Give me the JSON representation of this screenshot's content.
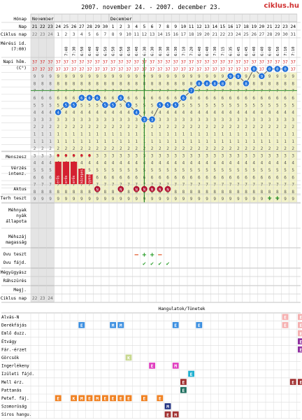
{
  "title": "2007. november 24. - 2007. december 23.",
  "logo": "ciklus.hu",
  "months": [
    "November",
    "December"
  ],
  "days": [
    21,
    22,
    23,
    24,
    25,
    26,
    27,
    28,
    29,
    30,
    1,
    2,
    3,
    4,
    5,
    6,
    7,
    8,
    9,
    10,
    11,
    12,
    13,
    14,
    15,
    16,
    17,
    18,
    19,
    20,
    21,
    22,
    23,
    24
  ],
  "cycle_days": [
    22,
    23,
    24,
    1,
    2,
    3,
    4,
    5,
    6,
    7,
    8,
    9,
    10,
    11,
    12,
    13,
    14,
    15,
    16,
    17,
    18,
    19,
    20,
    21,
    22,
    23,
    24,
    25,
    26,
    27,
    28,
    29,
    30,
    31
  ],
  "cycle_days_bottom": [
    22,
    23,
    24
  ],
  "measure_times": [
    "",
    "",
    "",
    "",
    "7:40",
    "7:30",
    "6:50",
    "6:40",
    "6:40",
    "6:50",
    "6:50",
    "6:50",
    "6:50",
    "6:40",
    "6:30",
    "6:30",
    "6:30",
    "6:30",
    "6:30",
    "7:10",
    "7:20",
    "6:40",
    "6:40",
    "7:30",
    "7:15",
    "6:35",
    "6:45",
    "6:45",
    "6:40",
    "6:40",
    "6:40",
    "6:50",
    "7:10",
    "7:10"
  ],
  "row_labels": {
    "month": "Hónap",
    "day": "Nap",
    "cycle": "Ciklus nap",
    "time1": "Mérési id.",
    "time2": "(7:00)",
    "temp1": "Napi hőm.",
    "temp2": "(C°)",
    "bleeding": "Menszesz",
    "intensity1": "Vérzés",
    "intensity2": "intenz.",
    "sex": "Aktus",
    "preg": "Terh teszt",
    "mucus1": "Méhnyak",
    "mucus2": "nyák",
    "mucus3": "állapota",
    "cervix1": "Méhszáj",
    "cervix2": "magasság",
    "ovu_test": "Ovu teszt",
    "ovu_fajd": "Ovu fájd.",
    "weight": "Mégyügyász",
    "cough": "Ráhszürés",
    "notes": "Megj.",
    "cycle_bottom": "Ciklus nap",
    "moods": "Hangulatok/Tünetek"
  },
  "temp_scale": [
    "37",
    "37",
    "9",
    "8",
    "7",
    "6",
    "5",
    "4",
    "3",
    "2",
    "1"
  ],
  "temp_scale_lower": [
    "1",
    "2",
    "3",
    "4",
    "5",
    "6",
    "7",
    "8",
    "9"
  ],
  "chart_data": {
    "type": "line",
    "x": [
      1,
      2,
      3,
      4,
      5,
      6,
      7,
      8,
      9,
      10,
      11,
      12,
      13,
      14,
      15,
      16,
      17,
      18,
      19,
      20,
      21,
      22,
      23,
      24,
      25,
      26,
      27,
      28,
      29,
      30
    ],
    "values": [
      36.4,
      36.5,
      36.5,
      36.6,
      36.6,
      36.6,
      36.5,
      36.5,
      36.6,
      36.5,
      36.4,
      36.3,
      36.3,
      36.5,
      36.5,
      36.5,
      36.6,
      36.7,
      36.8,
      36.8,
      36.8,
      36.8,
      36.9,
      36.9,
      36.8,
      37.0,
      36.9,
      37.0,
      37.0,
      37.0
    ],
    "coverline": 36.75,
    "ovulation_day": 12
  },
  "bleeding_days": [
    1,
    2,
    3,
    4,
    5
  ],
  "bleeding_labels": [
    "erős",
    "erős",
    "erős",
    "közepes",
    "gyenge"
  ],
  "sex_days": [
    6,
    9,
    11,
    12,
    13,
    14,
    15
  ],
  "sex_mark": "N",
  "ovu_test": [
    {
      "day": 11,
      "sign": "−"
    },
    {
      "day": 12,
      "sign": "+"
    },
    {
      "day": 13,
      "sign": "+"
    },
    {
      "day": 14,
      "sign": "−"
    }
  ],
  "ovu_fajd": [
    12,
    13,
    14,
    15
  ],
  "preg_test": [
    {
      "day": 28,
      "sign": "+"
    },
    {
      "day": 29,
      "sign": "+"
    }
  ],
  "symptoms": [
    {
      "label": "Alvás-N",
      "marks": [
        {
          "day": 30,
          "t": "E",
          "c": "#f5b0b0"
        },
        {
          "day": 32,
          "t": "E",
          "c": "#f5b0b0"
        }
      ]
    },
    {
      "label": "Derékfájás",
      "marks": [
        {
          "day": 4,
          "t": "E",
          "c": "#3a8ee0"
        },
        {
          "day": 8,
          "t": "M",
          "c": "#3a8ee0"
        },
        {
          "day": 9,
          "t": "M",
          "c": "#3a8ee0"
        },
        {
          "day": 16,
          "t": "E",
          "c": "#3a8ee0"
        },
        {
          "day": 19,
          "t": "E",
          "c": "#3a8ee0"
        },
        {
          "day": 30,
          "t": "E",
          "c": "#f5b0b0"
        },
        {
          "day": 32,
          "t": "E",
          "c": "#f5b0b0"
        }
      ]
    },
    {
      "label": "Emlő duzz.",
      "marks": [
        {
          "day": 32,
          "t": "E",
          "c": "#f5b0b0"
        }
      ]
    },
    {
      "label": "Étvágy",
      "marks": [
        {
          "day": 32,
          "t": "E",
          "c": "#9030a0"
        }
      ]
    },
    {
      "label": "Fár.-érzet",
      "marks": [
        {
          "day": 32,
          "t": "E",
          "c": "#9030a0"
        }
      ]
    },
    {
      "label": "Görcsök",
      "marks": [
        {
          "day": 10,
          "t": "K",
          "c": "#c8d890"
        }
      ]
    },
    {
      "label": "Ingerlékeny",
      "marks": [
        {
          "day": 13,
          "t": "E",
          "c": "#e040c0"
        },
        {
          "day": 16,
          "t": "M",
          "c": "#e040c0"
        }
      ]
    },
    {
      "label": "Izületi fájd.",
      "marks": [
        {
          "day": 18,
          "t": "E",
          "c": "#20b0d0"
        }
      ]
    },
    {
      "label": "Mell érz.",
      "marks": [
        {
          "day": 17,
          "t": "E",
          "c": "#a03030"
        },
        {
          "day": 31,
          "t": "E",
          "c": "#a03030"
        },
        {
          "day": 32,
          "t": "E",
          "c": "#a03030"
        }
      ]
    },
    {
      "label": "Pattanás",
      "marks": [
        {
          "day": 17,
          "t": "E",
          "c": "#207060"
        }
      ]
    },
    {
      "label": "Petef. fáj.",
      "marks": [
        {
          "day": 1,
          "t": "E",
          "c": "#f08020"
        },
        {
          "day": 3,
          "t": "K",
          "c": "#f08020"
        },
        {
          "day": 4,
          "t": "M",
          "c": "#f08020"
        },
        {
          "day": 5,
          "t": "E",
          "c": "#f08020"
        },
        {
          "day": 6,
          "t": "M",
          "c": "#f08020"
        },
        {
          "day": 7,
          "t": "E",
          "c": "#f08020"
        },
        {
          "day": 8,
          "t": "E",
          "c": "#f08020"
        },
        {
          "day": 9,
          "t": "E",
          "c": "#f08020"
        },
        {
          "day": 10,
          "t": "E",
          "c": "#f08020"
        },
        {
          "day": 12,
          "t": "E",
          "c": "#f08020"
        },
        {
          "day": 14,
          "t": "E",
          "c": "#f08020"
        }
      ]
    },
    {
      "label": "Szomorúság",
      "marks": [
        {
          "day": 15,
          "t": "M",
          "c": "#203080"
        }
      ]
    },
    {
      "label": "Síros hangu.",
      "marks": [
        {
          "day": 15,
          "t": "E",
          "c": "#a03030"
        },
        {
          "day": 16,
          "t": "M",
          "c": "#a03030"
        }
      ]
    }
  ],
  "colors": {
    "accent": "#1f6fd8",
    "bleeding": "#d42030",
    "ovu_plus": "#30a030",
    "ovu_minus": "#e05020",
    "grid": "#b0b0b0",
    "cell_yellow": "#f2f2c8"
  }
}
